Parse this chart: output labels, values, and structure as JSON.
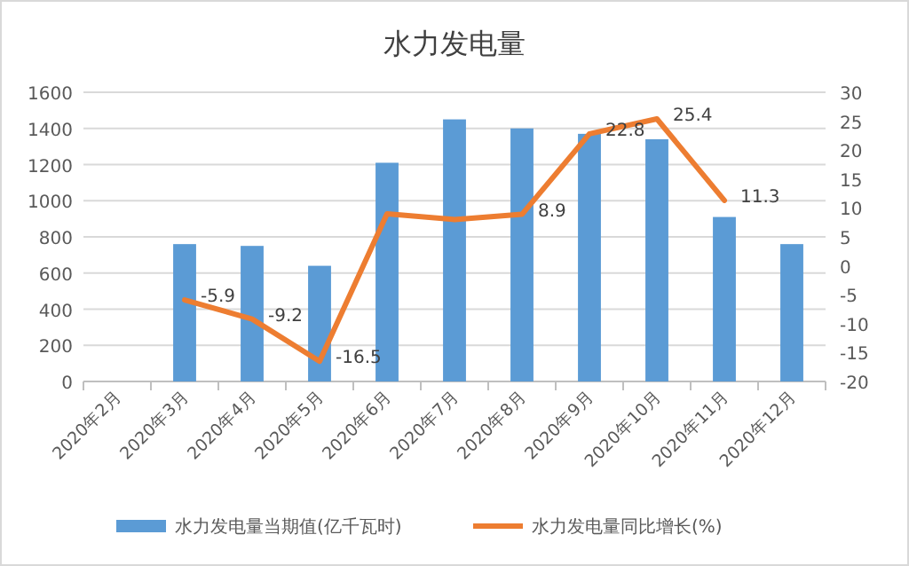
{
  "chart_data": {
    "type": "bar",
    "title": "水力发电量",
    "categories": [
      "2020年2月",
      "2020年3月",
      "2020年4月",
      "2020年5月",
      "2020年6月",
      "2020年7月",
      "2020年8月",
      "2020年9月",
      "2020年10月",
      "2020年11月",
      "2020年12月"
    ],
    "series": [
      {
        "name": "水力发电量当期值(亿千瓦时)",
        "color": "#5b9bd5",
        "values": [
          null,
          760,
          750,
          640,
          1210,
          1450,
          1400,
          1370,
          1340,
          910,
          760
        ]
      },
      {
        "name": "水力发电量同比增长(%)",
        "type": "line",
        "axis": "y2",
        "color": "#ed7d31",
        "values": [
          null,
          -5.9,
          -9.2,
          -16.5,
          9,
          8,
          8.9,
          22.8,
          25.4,
          11.3,
          null
        ],
        "value_labels": [
          null,
          "-5.9",
          "-9.2",
          "-16.5",
          null,
          null,
          "8.9",
          "22.8",
          "25.4",
          "11.3",
          null
        ]
      }
    ],
    "ylim": [
      0,
      1600
    ],
    "yticks": [
      0,
      200,
      400,
      600,
      800,
      1000,
      1200,
      1400,
      1600
    ],
    "y2lim": [
      -20,
      30
    ],
    "y2ticks": [
      -20,
      -15,
      -10,
      -5,
      0,
      5,
      10,
      15,
      20,
      25,
      30
    ],
    "grid": "y",
    "legend": "bottom",
    "marker": "none",
    "line_style": "solid"
  }
}
